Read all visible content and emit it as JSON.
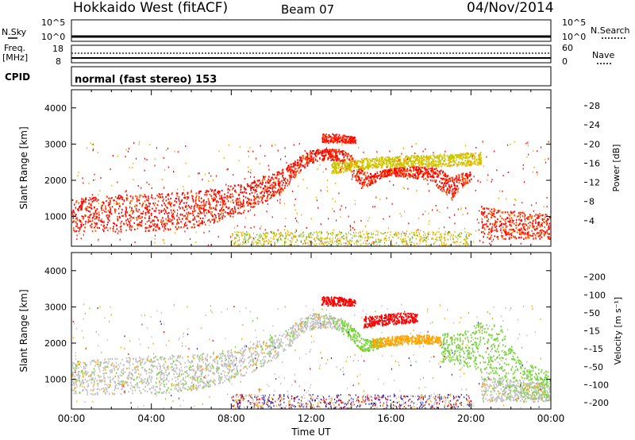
{
  "header": {
    "station": "Hokkaido West (fitACF)",
    "beam": "Beam 07",
    "date": "04/Nov/2014"
  },
  "status": {
    "nsky_label": "N.Sky",
    "nsky_ticks": [
      "10^5",
      "10^0"
    ],
    "nsearch_label": "N.Search",
    "nsearch_ticks": [
      "10^5",
      "10^0"
    ],
    "freq_label": "Freq.",
    "freq_unit": "[MHz]",
    "freq_ticks": [
      "18",
      "8"
    ],
    "nave_label": "Nave",
    "nave_ticks": [
      "60",
      "0"
    ],
    "cpid_label": "CPID",
    "cpid_text": "normal (fast stereo) 153"
  },
  "chart_data": [
    {
      "type": "heatmap",
      "name": "power",
      "ylabel": "Slant Range [km]",
      "ylim": [
        180,
        4500
      ],
      "yticks": [
        1000,
        2000,
        3000,
        4000
      ],
      "xlabel": "",
      "xlim": [
        0,
        24
      ],
      "colorbar_label": "Power [dB]",
      "colorbar_ticks": [
        4,
        8,
        12,
        16,
        20,
        24,
        28
      ],
      "colorbar_range": [
        0,
        30
      ],
      "colorbar_colors": [
        "#0000ff",
        "#2a4fb0",
        "#3c8c78",
        "#5ab43c",
        "#c8c800",
        "#ffa500",
        "#ff5000",
        "#ff0000"
      ],
      "bands": [
        {
          "x": [
            0,
            2,
            4,
            6,
            7.5,
            9,
            10.5,
            11.5,
            12,
            12.8,
            13.5,
            14,
            14.5,
            15,
            15.5,
            16,
            17,
            18,
            18.5,
            19,
            19.5,
            20
          ],
          "y_low": [
            600,
            600,
            620,
            700,
            900,
            1200,
            1700,
            2300,
            2500,
            2600,
            2500,
            2200,
            1800,
            1900,
            2100,
            2150,
            2100,
            2000,
            1700,
            1500,
            1800,
            2000
          ],
          "y_high": [
            1500,
            1600,
            1650,
            1700,
            1800,
            2000,
            2300,
            2700,
            2850,
            2900,
            2900,
            2700,
            2300,
            2200,
            2300,
            2350,
            2400,
            2400,
            2300,
            2100,
            2200,
            2300
          ],
          "value": 28
        },
        {
          "x": [
            20.5,
            21.5,
            22.5,
            23.5,
            24
          ],
          "y_low": [
            400,
            400,
            400,
            400,
            400
          ],
          "y_high": [
            1300,
            1200,
            1150,
            1100,
            1100
          ],
          "value": 27
        },
        {
          "x": [
            13,
            15,
            17,
            19,
            20.5
          ],
          "y_low": [
            2200,
            2350,
            2400,
            2400,
            2450
          ],
          "y_high": [
            2500,
            2650,
            2700,
            2750,
            2800
          ],
          "value": 19
        },
        {
          "x": [
            12.5,
            13.2,
            13.8,
            14.2
          ],
          "y_low": [
            3050,
            3050,
            3050,
            3050
          ],
          "y_high": [
            3300,
            3300,
            3250,
            3200
          ],
          "value": 28
        }
      ]
    },
    {
      "type": "heatmap",
      "name": "velocity",
      "ylabel": "Slant Range [km]",
      "ylim": [
        180,
        4500
      ],
      "yticks": [
        1000,
        2000,
        3000,
        4000
      ],
      "xlabel": "Time UT",
      "xlim": [
        0,
        24
      ],
      "xticks": [
        "00:00",
        "04:00",
        "08:00",
        "12:00",
        "16:00",
        "20:00",
        "00:00"
      ],
      "colorbar_label": "Velocity [m s⁻¹]",
      "colorbar_ticks": [
        "200",
        "100",
        "50",
        "15",
        "-15",
        "-50",
        "-100",
        "-200"
      ],
      "colorbar_colors": [
        "#2020c0",
        "#2a6e8c",
        "#3ca050",
        "#78d23c",
        "#c8c8c8",
        "#ffa500",
        "#ff6400",
        "#ff0000"
      ],
      "bands": [
        {
          "x": [
            0,
            2,
            4,
            6,
            7.5,
            9,
            10.5,
            11.5,
            12,
            12.8,
            13.5
          ],
          "y_low": [
            600,
            600,
            620,
            700,
            900,
            1200,
            1700,
            2300,
            2400,
            2450,
            2350
          ],
          "y_high": [
            1500,
            1600,
            1650,
            1700,
            1800,
            2000,
            2300,
            2700,
            2850,
            2800,
            2700
          ],
          "value": "gray"
        },
        {
          "x": [
            13.5,
            14,
            14.5,
            15,
            15.5
          ],
          "y_low": [
            2300,
            2100,
            1800,
            1800,
            1900
          ],
          "y_high": [
            2700,
            2500,
            2200,
            2100,
            2150
          ],
          "value": "green"
        },
        {
          "x": [
            15,
            16,
            17,
            18,
            18.5
          ],
          "y_low": [
            1900,
            1950,
            2000,
            2000,
            1900
          ],
          "y_high": [
            2150,
            2200,
            2250,
            2250,
            2150
          ],
          "value": "orange"
        },
        {
          "x": [
            14.6,
            15.5,
            16.5,
            17.3
          ],
          "y_low": [
            2450,
            2500,
            2550,
            2600
          ],
          "y_high": [
            2750,
            2800,
            2850,
            2850
          ],
          "value": "red"
        },
        {
          "x": [
            18.5,
            19.5,
            20.5,
            21.5,
            22.5,
            24
          ],
          "y_low": [
            1500,
            1400,
            1200,
            800,
            500,
            400
          ],
          "y_high": [
            2300,
            2300,
            2600,
            2500,
            1500,
            1200
          ],
          "value": "green"
        },
        {
          "x": [
            20.5,
            22,
            23,
            24
          ],
          "y_low": [
            400,
            400,
            400,
            400
          ],
          "y_high": [
            1100,
            1000,
            950,
            900
          ],
          "value": "gray"
        },
        {
          "x": [
            12.5,
            13.2,
            13.8,
            14.2
          ],
          "y_low": [
            3050,
            3050,
            3050,
            3050
          ],
          "y_high": [
            3300,
            3300,
            3250,
            3200
          ],
          "value": "red"
        }
      ]
    }
  ]
}
